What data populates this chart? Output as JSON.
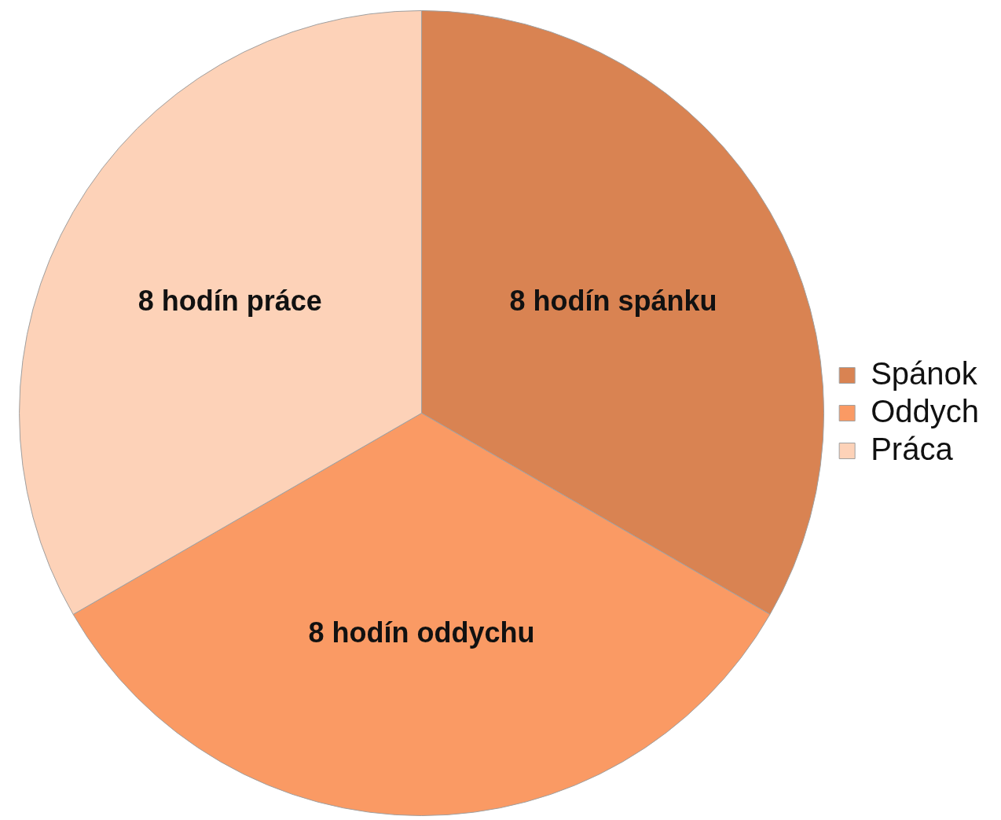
{
  "chart_data": {
    "type": "pie",
    "categories": [
      "Spánok",
      "Oddych",
      "Práca"
    ],
    "values": [
      8,
      8,
      8
    ],
    "colors": [
      "#d98352",
      "#fa9a64",
      "#fdd2b8"
    ],
    "value_labels": [
      "8 hodín spánku",
      "8 hodín oddychu",
      "8 hodín práce"
    ],
    "legend": "right"
  }
}
